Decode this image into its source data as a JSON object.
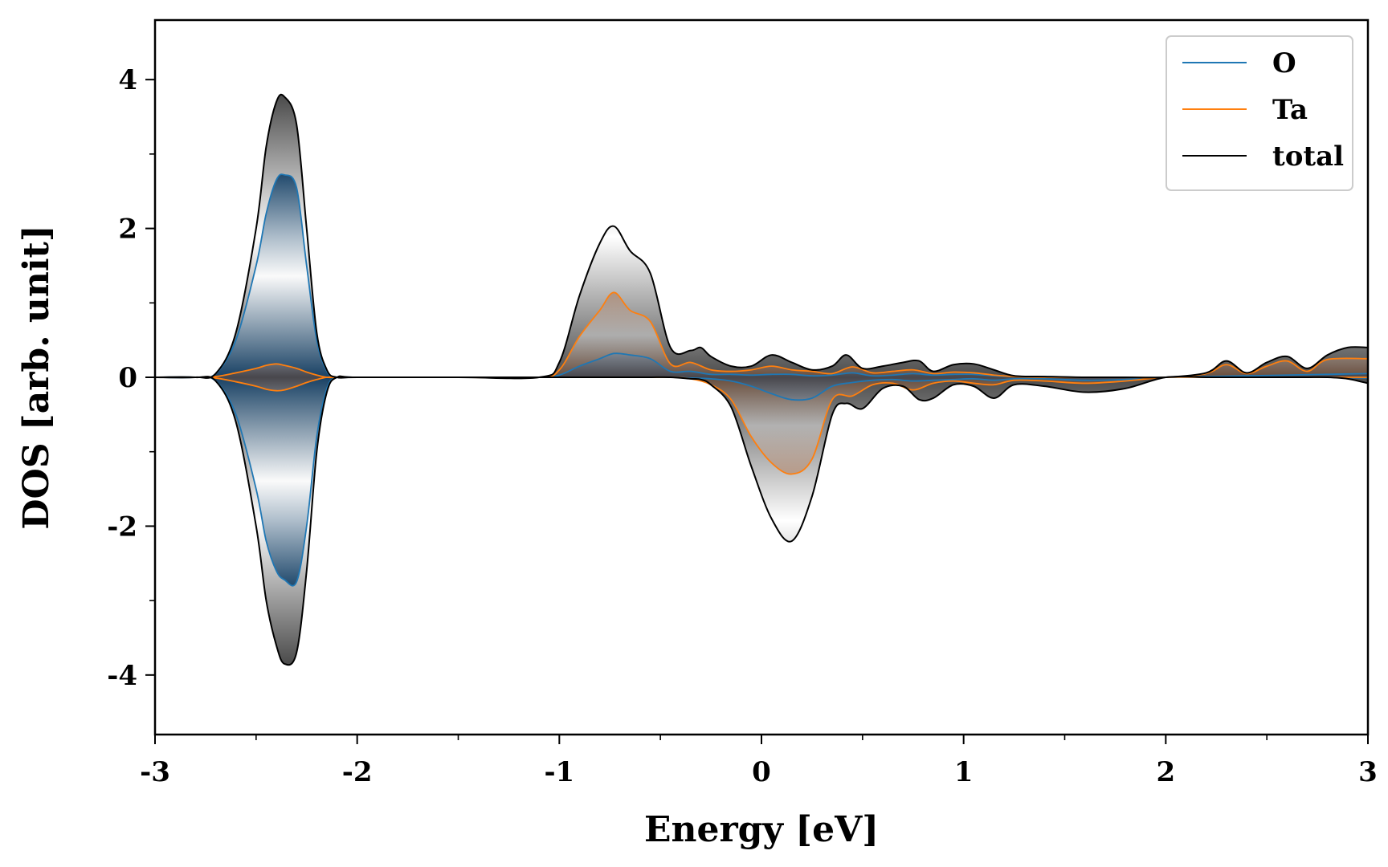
{
  "chart_data": {
    "type": "line",
    "title": "",
    "xlabel": "Energy [eV]",
    "ylabel": "DOS [arb. unit]",
    "xlim": [
      -3,
      3
    ],
    "ylim": [
      -4.8,
      4.8
    ],
    "xticks": [
      -3,
      -2,
      -1,
      0,
      1,
      2,
      3
    ],
    "xtick_labels": [
      "-3",
      "-2",
      "-1",
      "0",
      "1",
      "2",
      "3"
    ],
    "yticks": [
      -4,
      -2,
      0,
      2,
      4
    ],
    "ytick_labels": [
      "-4",
      "-2",
      "0",
      "2",
      "4"
    ],
    "grid": false,
    "legend_position": "top-right",
    "series": [
      {
        "name": "O",
        "color": "#1f77b4",
        "x": [
          -3.0,
          -2.8,
          -2.7,
          -2.6,
          -2.5,
          -2.45,
          -2.4,
          -2.36,
          -2.3,
          -2.25,
          -2.2,
          -2.15,
          -2.1,
          -2.0,
          -1.5,
          -1.1,
          -1.0,
          -0.9,
          -0.8,
          -0.73,
          -0.65,
          -0.55,
          -0.45,
          -0.35,
          -0.25,
          -0.15,
          -0.05,
          0.05,
          0.15,
          0.25,
          0.35,
          0.45,
          0.55,
          0.65,
          0.75,
          0.85,
          0.95,
          1.05,
          1.15,
          1.25,
          1.4,
          1.6,
          1.8,
          2.0,
          2.2,
          2.4,
          2.6,
          2.8,
          3.0
        ],
        "up": [
          0,
          0,
          0.05,
          0.5,
          1.5,
          2.2,
          2.65,
          2.72,
          2.55,
          1.5,
          0.5,
          0.08,
          0,
          0,
          0,
          0,
          0.03,
          0.15,
          0.25,
          0.32,
          0.3,
          0.25,
          0.08,
          0.08,
          0.04,
          0.04,
          0.03,
          0.04,
          0.04,
          0.02,
          0.03,
          0.06,
          0.02,
          0.03,
          0.05,
          0.03,
          0.04,
          0.04,
          0.02,
          0.01,
          0.01,
          0,
          0,
          0,
          0.01,
          0.02,
          0.03,
          0.04,
          0.05
        ],
        "down": [
          0,
          0,
          -0.05,
          -0.5,
          -1.5,
          -2.2,
          -2.6,
          -2.72,
          -2.75,
          -2.0,
          -0.8,
          -0.15,
          0,
          0,
          0,
          0,
          0,
          0,
          0,
          0,
          0,
          0,
          0,
          -0.01,
          -0.02,
          -0.05,
          -0.12,
          -0.22,
          -0.3,
          -0.28,
          -0.12,
          -0.07,
          -0.04,
          -0.03,
          -0.05,
          -0.04,
          -0.03,
          -0.02,
          -0.04,
          -0.02,
          -0.02,
          -0.04,
          -0.03,
          0,
          0,
          0,
          0,
          0,
          -0.01
        ]
      },
      {
        "name": "Ta",
        "color": "#ff7f0e",
        "x": [
          -3.0,
          -2.8,
          -2.7,
          -2.6,
          -2.5,
          -2.45,
          -2.4,
          -2.36,
          -2.3,
          -2.25,
          -2.2,
          -2.15,
          -2.1,
          -2.0,
          -1.5,
          -1.1,
          -1.0,
          -0.9,
          -0.8,
          -0.73,
          -0.65,
          -0.55,
          -0.45,
          -0.35,
          -0.25,
          -0.15,
          -0.05,
          0.05,
          0.15,
          0.25,
          0.35,
          0.45,
          0.55,
          0.65,
          0.75,
          0.85,
          0.95,
          1.05,
          1.15,
          1.25,
          1.4,
          1.6,
          1.8,
          2.0,
          2.2,
          2.3,
          2.4,
          2.5,
          2.6,
          2.7,
          2.8,
          3.0
        ],
        "up": [
          0,
          0,
          0.01,
          0.06,
          0.12,
          0.16,
          0.18,
          0.16,
          0.12,
          0.07,
          0.03,
          0,
          0,
          0,
          0,
          0,
          0.1,
          0.55,
          0.9,
          1.14,
          0.9,
          0.75,
          0.18,
          0.2,
          0.1,
          0.08,
          0.1,
          0.15,
          0.1,
          0.08,
          0.05,
          0.14,
          0.06,
          0.08,
          0.1,
          0.05,
          0.07,
          0.06,
          0.03,
          0.01,
          0,
          0,
          0,
          0,
          0.05,
          0.17,
          0.05,
          0.15,
          0.22,
          0.08,
          0.24,
          0.25
        ],
        "down": [
          0,
          0,
          -0.01,
          -0.06,
          -0.12,
          -0.16,
          -0.18,
          -0.17,
          -0.12,
          -0.07,
          -0.03,
          0,
          0,
          0,
          0,
          0,
          0,
          0,
          0,
          0,
          0,
          0,
          0,
          -0.02,
          -0.1,
          -0.3,
          -0.8,
          -1.15,
          -1.3,
          -1.1,
          -0.3,
          -0.25,
          -0.1,
          -0.08,
          -0.17,
          -0.08,
          -0.05,
          -0.08,
          -0.1,
          -0.04,
          -0.05,
          -0.08,
          -0.05,
          0,
          0,
          0,
          0,
          0,
          0,
          0,
          0,
          0
        ]
      },
      {
        "name": "total",
        "color": "#000000",
        "x": [
          -3.0,
          -2.8,
          -2.7,
          -2.6,
          -2.5,
          -2.45,
          -2.4,
          -2.36,
          -2.3,
          -2.25,
          -2.2,
          -2.15,
          -2.1,
          -2.0,
          -1.5,
          -1.1,
          -1.0,
          -0.9,
          -0.8,
          -0.73,
          -0.65,
          -0.55,
          -0.45,
          -0.35,
          -0.3,
          -0.25,
          -0.15,
          -0.05,
          0.05,
          0.15,
          0.25,
          0.35,
          0.42,
          0.5,
          0.6,
          0.7,
          0.78,
          0.85,
          0.95,
          1.05,
          1.15,
          1.25,
          1.4,
          1.6,
          1.8,
          2.0,
          2.2,
          2.3,
          2.4,
          2.5,
          2.6,
          2.7,
          2.8,
          2.9,
          3.0
        ],
        "up": [
          0,
          0,
          0.05,
          0.6,
          2.0,
          3.1,
          3.7,
          3.77,
          3.4,
          2.0,
          0.6,
          0.1,
          0,
          0,
          0,
          0,
          0.2,
          1.1,
          1.8,
          2.03,
          1.7,
          1.4,
          0.4,
          0.36,
          0.4,
          0.28,
          0.15,
          0.15,
          0.3,
          0.2,
          0.1,
          0.15,
          0.3,
          0.12,
          0.15,
          0.2,
          0.22,
          0.08,
          0.17,
          0.18,
          0.1,
          0.02,
          0.01,
          0,
          0,
          0,
          0.06,
          0.22,
          0.06,
          0.2,
          0.28,
          0.12,
          0.3,
          0.4,
          0.4
        ],
        "down": [
          0,
          0,
          -0.05,
          -0.6,
          -2.0,
          -3.0,
          -3.6,
          -3.85,
          -3.7,
          -2.6,
          -1.0,
          -0.2,
          0,
          0,
          0,
          0,
          0,
          0,
          0,
          0,
          0,
          0,
          0,
          -0.02,
          -0.03,
          -0.1,
          -0.4,
          -1.2,
          -1.9,
          -2.2,
          -1.6,
          -0.5,
          -0.35,
          -0.42,
          -0.15,
          -0.12,
          -0.3,
          -0.28,
          -0.1,
          -0.12,
          -0.28,
          -0.1,
          -0.12,
          -0.2,
          -0.15,
          0,
          0,
          0,
          0,
          0,
          0,
          0,
          0,
          -0.02,
          -0.08
        ]
      }
    ]
  }
}
